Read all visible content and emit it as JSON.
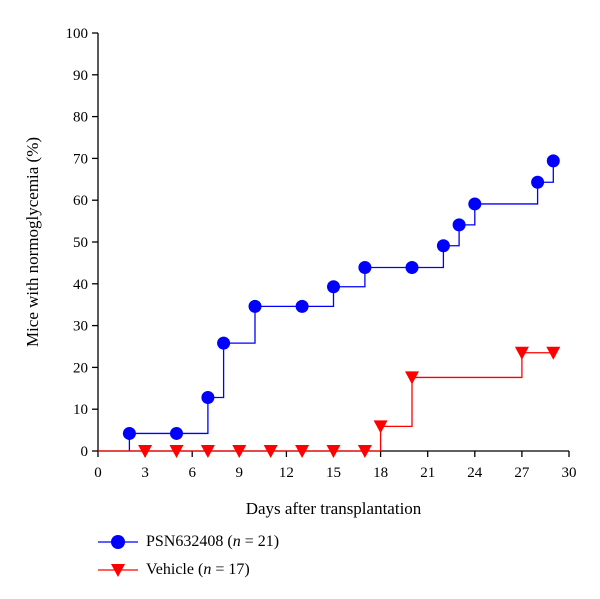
{
  "chart_data": {
    "type": "line",
    "step": true,
    "xlabel": "Days after transplantation",
    "ylabel": "Mice with normoglycemia (%)",
    "xlim": [
      0,
      30
    ],
    "ylim": [
      0,
      100
    ],
    "xticks": [
      0,
      3,
      6,
      9,
      12,
      15,
      18,
      21,
      24,
      27,
      30
    ],
    "yticks": [
      0,
      10,
      20,
      30,
      40,
      50,
      60,
      70,
      80,
      90,
      100
    ],
    "grid": false,
    "legend_position": "bottom-left",
    "series": [
      {
        "name": "PSN632408",
        "n_label": "n",
        "n_value": "= 21)",
        "color": "#0000ff",
        "marker": "circle",
        "start": [
          2,
          0
        ],
        "points": [
          [
            2,
            4.2
          ],
          [
            5,
            4.2
          ],
          [
            7,
            12.8
          ],
          [
            8,
            25.8
          ],
          [
            10,
            34.6
          ],
          [
            13,
            34.6
          ],
          [
            15,
            39.3
          ],
          [
            17,
            43.9
          ],
          [
            20,
            43.9
          ],
          [
            22,
            49.1
          ],
          [
            23,
            54.1
          ],
          [
            24,
            59.1
          ],
          [
            28,
            64.3
          ],
          [
            29,
            69.4
          ]
        ]
      },
      {
        "name": "Vehicle",
        "n_label": "n",
        "n_value": "= 17)",
        "color": "#ff0000",
        "marker": "triangle-down",
        "start": [
          0,
          0
        ],
        "points": [
          [
            3,
            0
          ],
          [
            5,
            0
          ],
          [
            7,
            0
          ],
          [
            9,
            0
          ],
          [
            11,
            0
          ],
          [
            13,
            0
          ],
          [
            15,
            0
          ],
          [
            17,
            0
          ],
          [
            18,
            5.9
          ],
          [
            20,
            17.6
          ],
          [
            27,
            23.5
          ],
          [
            29,
            23.5
          ]
        ]
      }
    ]
  }
}
